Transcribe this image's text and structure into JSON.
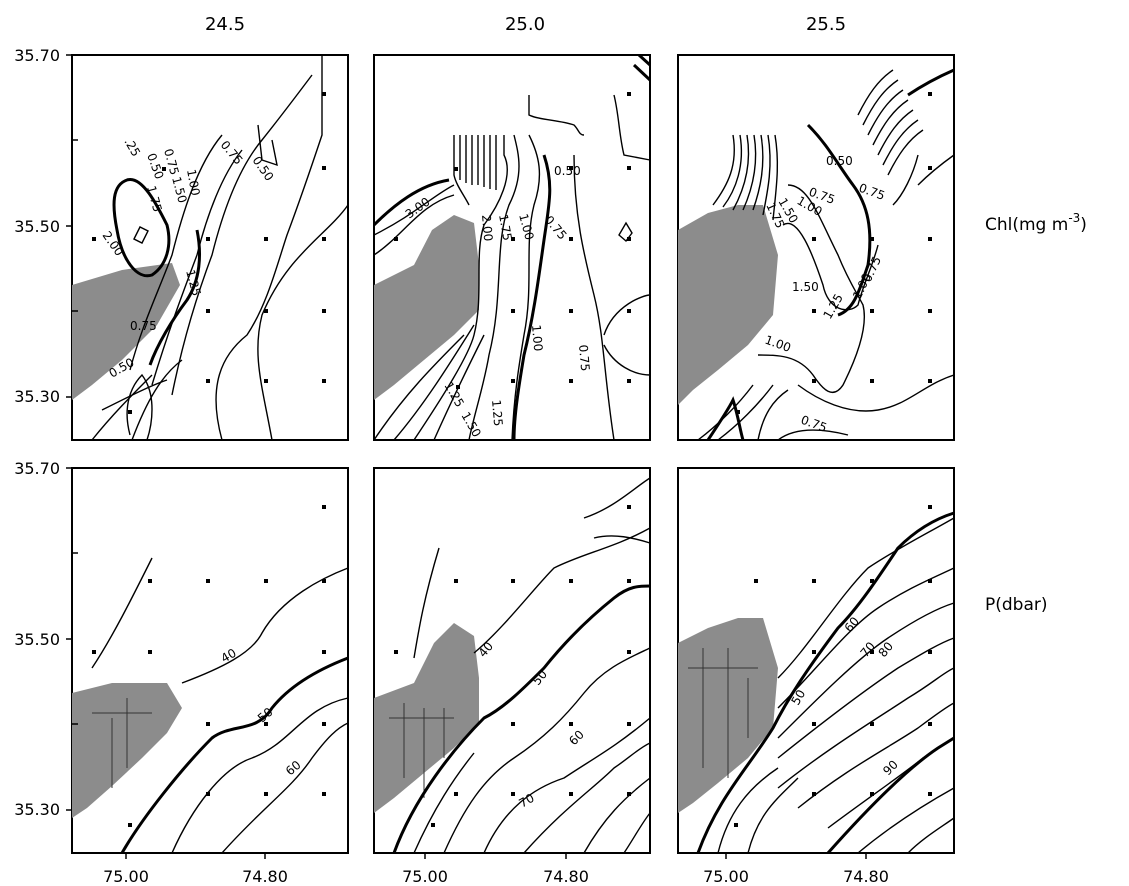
{
  "figure": {
    "column_titles": [
      "24.5",
      "25.0",
      "25.5"
    ],
    "row_labels": [
      "Chl(mg m",
      "P(dbar)"
    ],
    "chl_unit_exponent": "-3",
    "y_tick_labels": [
      "35.70",
      "35.50",
      "35.30"
    ],
    "x_tick_labels": [
      "75.00",
      "74.80"
    ]
  },
  "chart_data": [
    {
      "type": "contour",
      "panel": "Chl sigma 24.5",
      "variable": "Chl(mg m-3)",
      "sigma_level": "24.5",
      "xlim": [
        75.08,
        74.71
      ],
      "ylim": [
        35.25,
        35.7
      ],
      "contour_labels": [
        "0.25",
        "0.50",
        "0.75",
        "1.00",
        "1.25",
        "1.50",
        "1.75",
        "2.00"
      ]
    },
    {
      "type": "contour",
      "panel": "Chl sigma 25.0",
      "variable": "Chl(mg m-3)",
      "sigma_level": "25.0",
      "xlim": [
        75.08,
        74.71
      ],
      "ylim": [
        35.25,
        35.7
      ],
      "contour_labels": [
        "0.50",
        "0.75",
        "1.00",
        "1.25",
        "1.50",
        "1.75",
        "2.00",
        "3.00"
      ]
    },
    {
      "type": "contour",
      "panel": "Chl sigma 25.5",
      "variable": "Chl(mg m-3)",
      "sigma_level": "25.5",
      "xlim": [
        75.08,
        74.71
      ],
      "ylim": [
        35.25,
        35.7
      ],
      "contour_labels": [
        "0.50",
        "0.75",
        "1.00",
        "1.25",
        "1.50"
      ]
    },
    {
      "type": "contour",
      "panel": "P sigma 24.5",
      "variable": "P(dbar)",
      "sigma_level": "24.5",
      "xlim": [
        75.08,
        74.71
      ],
      "ylim": [
        35.25,
        35.7
      ],
      "contour_labels": [
        "40",
        "50",
        "60"
      ]
    },
    {
      "type": "contour",
      "panel": "P sigma 25.0",
      "variable": "P(dbar)",
      "sigma_level": "25.0",
      "xlim": [
        75.08,
        74.71
      ],
      "ylim": [
        35.25,
        35.7
      ],
      "contour_labels": [
        "40",
        "50",
        "60",
        "70"
      ]
    },
    {
      "type": "contour",
      "panel": "P sigma 25.5",
      "variable": "P(dbar)",
      "sigma_level": "25.5",
      "xlim": [
        75.08,
        74.71
      ],
      "ylim": [
        35.25,
        35.7
      ],
      "contour_labels": [
        "50",
        "60",
        "70",
        "80",
        "90"
      ]
    }
  ]
}
